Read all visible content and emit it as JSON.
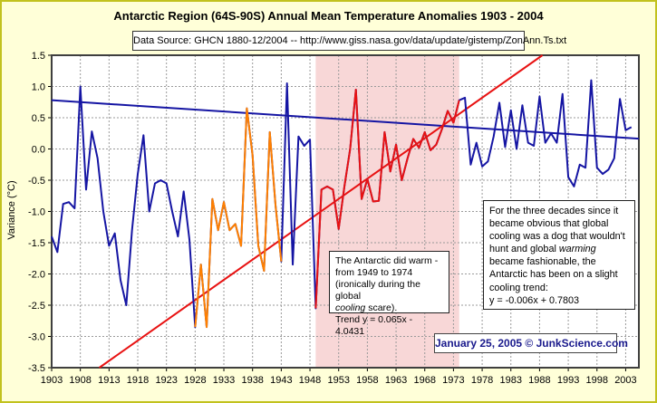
{
  "window": {
    "bg": "#ffffd8",
    "border_color": "#c2c21e"
  },
  "header": {
    "title": "Antarctic Region (64S-90S) Annual Mean Temperature Anomalies 1903 - 2004",
    "source": "Data Source: GHCN 1880-12/2004 -- http://www.giss.nasa.gov/data/update/gistemp/ZonAnn.Ts.txt"
  },
  "chart_data": {
    "type": "line",
    "title": "Antarctic Region (64S-90S) Annual Mean Temperature Anomalies 1903 - 2004",
    "xlabel": "",
    "ylabel": "Variance (°C)",
    "xlim": [
      1903,
      2005.3
    ],
    "ylim": [
      -3.5,
      1.5
    ],
    "grid": true,
    "x_ticks": [
      1903,
      1908,
      1913,
      1918,
      1923,
      1928,
      1933,
      1938,
      1943,
      1948,
      1953,
      1958,
      1963,
      1968,
      1973,
      1978,
      1983,
      1988,
      1993,
      1998,
      2003
    ],
    "y_ticks": [
      1.5,
      1.0,
      0.5,
      0.0,
      -0.5,
      -1.0,
      -1.5,
      -2.0,
      -2.5,
      -3.0,
      -3.5
    ],
    "highlight_band": {
      "name": "warming-period-band",
      "from": 1949,
      "to": 1974,
      "color": "#f8d7d7"
    },
    "x_start": 1903,
    "x_end": 2004,
    "series": [
      {
        "name": "annual-mean-anomaly",
        "color": "#1515a3",
        "values": [
          -1.4,
          -1.65,
          -0.88,
          -0.85,
          -0.95,
          1.0,
          -0.65,
          0.28,
          -0.15,
          -1.0,
          -1.55,
          -1.35,
          -2.1,
          -2.5,
          -1.3,
          -0.4,
          0.22,
          -1.0,
          -0.55,
          -0.5,
          -0.55,
          -1.0,
          -1.4,
          -0.68,
          -1.45,
          -2.85,
          -1.85,
          -2.85,
          -0.8,
          -1.3,
          -0.85,
          -1.3,
          -1.2,
          -1.55,
          0.65,
          -0.1,
          -1.55,
          -1.95,
          0.27,
          -0.9,
          -1.8,
          1.05,
          -1.85,
          0.2,
          0.05,
          0.15,
          -2.55,
          -0.65,
          -0.6,
          -0.65,
          -1.28,
          -0.6,
          0.0,
          0.95,
          -0.8,
          -0.48,
          -0.84,
          -0.83,
          0.27,
          -0.36,
          0.07,
          -0.5,
          -0.15,
          0.16,
          0.02,
          0.27,
          -0.02,
          0.07,
          0.32,
          0.61,
          0.42,
          0.78,
          0.82,
          -0.25,
          0.1,
          -0.28,
          -0.2,
          0.2,
          0.74,
          0.03,
          0.62,
          0.0,
          0.7,
          0.1,
          0.05,
          0.84,
          0.1,
          0.25,
          0.1,
          0.88,
          -0.45,
          -0.6,
          -0.25,
          -0.3,
          1.1,
          -0.3,
          -0.4,
          -0.33,
          -0.15,
          0.8,
          0.3,
          0.35
        ]
      }
    ],
    "color_segments": [
      {
        "name": "orange-segment-1928-1943",
        "color": "#ff8000",
        "from": 1928,
        "to": 1943
      },
      {
        "name": "red-warming-segment-1949-1974",
        "color": "#e81212",
        "from": 1949,
        "to": 1974
      }
    ],
    "trend_lines": [
      {
        "name": "full-period-cooling-trend",
        "color": "#1515a3",
        "equation": "y = -0.006x + 0.7803",
        "x1": 1903,
        "v1": 0.78,
        "x2": 2005.3,
        "v2": 0.164
      },
      {
        "name": "warming-period-trend",
        "color": "#e81212",
        "equation": "y = 0.065x - 4.0431",
        "x1": 1911.3,
        "v1": -3.5,
        "x2": 1988.5,
        "v2": 1.5
      }
    ],
    "legend": null
  },
  "annotations": {
    "left_box": {
      "lines": [
        [
          {
            "t": "The Antarctic did warm -"
          }
        ],
        [
          {
            "t": "from 1949 to 1974"
          }
        ],
        [
          {
            "t": "(ironically during the global"
          }
        ],
        [
          {
            "t": "cooling",
            "i": true
          },
          {
            "t": " scare)."
          }
        ],
        [
          {
            "t": "Trend y = 0.065x - 4.0431"
          }
        ]
      ]
    },
    "right_box": {
      "lines": [
        [
          {
            "t": "For the three decades since it"
          }
        ],
        [
          {
            "t": "became obvious that global"
          }
        ],
        [
          {
            "t": "cooling was a dog that wouldn't"
          }
        ],
        [
          {
            "t": "hunt and global "
          },
          {
            "t": "warming",
            "i": true
          }
        ],
        [
          {
            "t": "became fashionable, the"
          }
        ],
        [
          {
            "t": "Antarctic has been on a slight"
          }
        ],
        [
          {
            "t": "cooling trend:"
          }
        ],
        [
          {
            "t": "y = -0.006x + 0.7803"
          }
        ]
      ]
    },
    "date_box": "January 25, 2005 © JunkScience.com"
  },
  "plot_geometry_note": {
    "y_axis_title": "Variance (°C)"
  }
}
